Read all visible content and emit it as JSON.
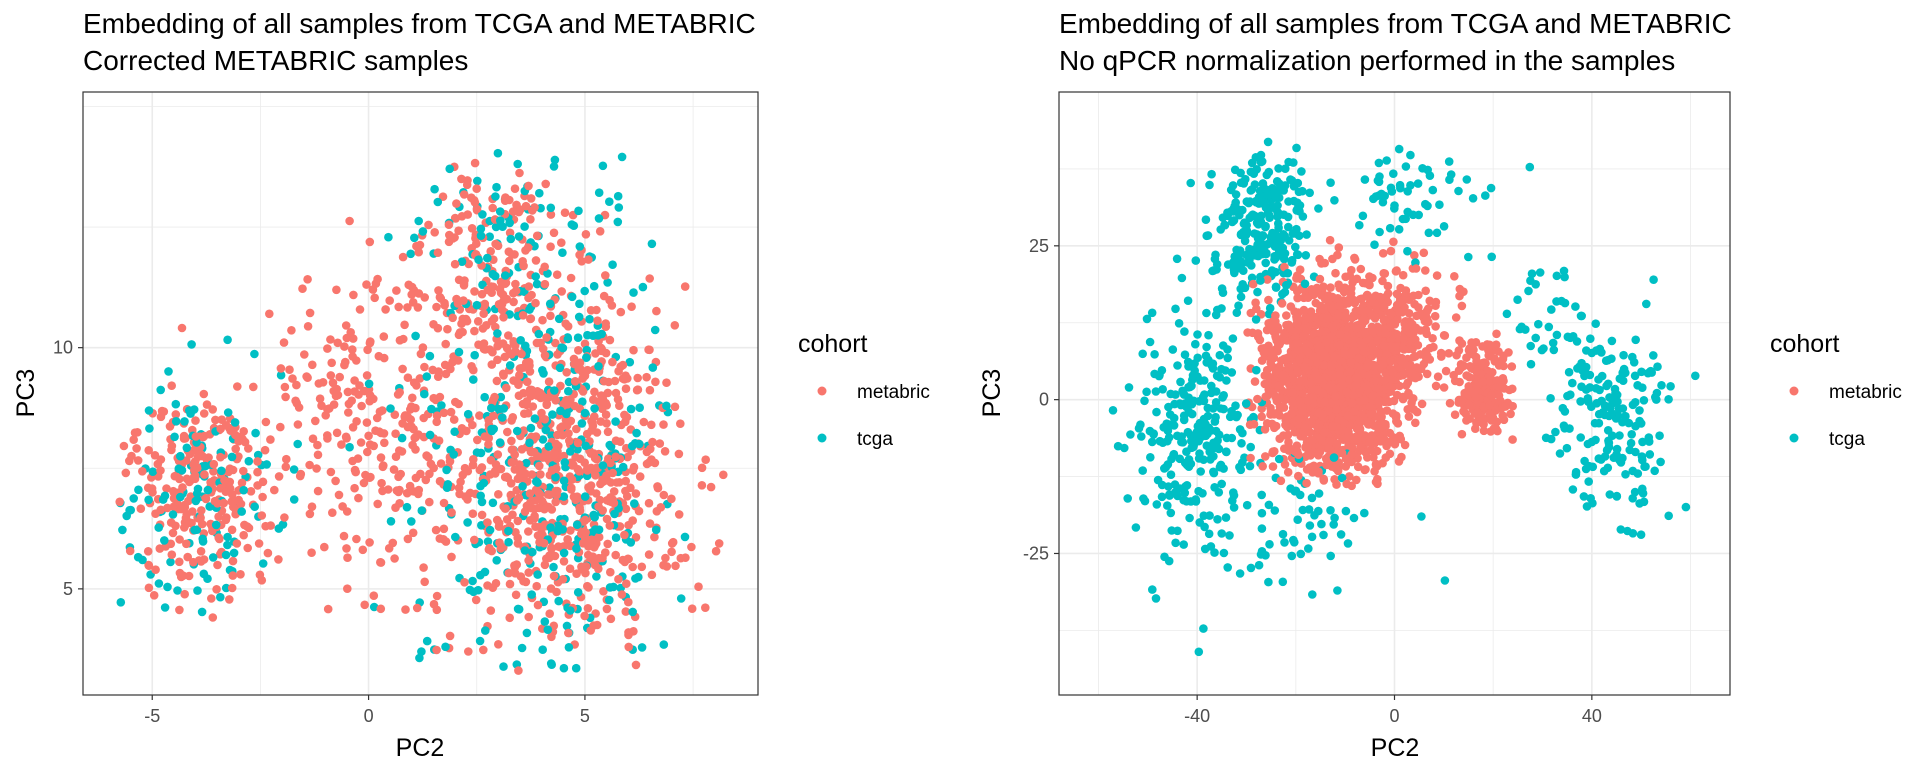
{
  "panels": [
    {
      "chart_data": {
        "type": "scatter",
        "title": "Embedding of all samples from TCGA and METABRIC",
        "subtitle": "Corrected METABRIC samples",
        "xlabel": "PC2",
        "ylabel": "PC3",
        "xlim": [
          -6.6,
          9.0
        ],
        "ylim": [
          2.8,
          15.3
        ],
        "x_major_ticks": [
          -5,
          0,
          5
        ],
        "y_major_ticks": [
          5,
          10
        ],
        "x_tick_labels": [
          "-5",
          "0",
          "5"
        ],
        "y_tick_labels": [
          "5",
          "10"
        ],
        "grid": true,
        "legend_title": "cohort",
        "legend_position": "right",
        "series": [
          {
            "name": "metabric",
            "color": "#F8766D",
            "clusters": [
              {
                "n": 700,
                "cx": 4.6,
                "cy": 7.5,
                "sx": 1.3,
                "sy": 1.8,
                "xmin": 0.5,
                "xmax": 8.2,
                "ymin": 3.3,
                "ymax": 11.5
              },
              {
                "n": 260,
                "cx": -3.8,
                "cy": 7.0,
                "sx": 0.8,
                "sy": 1.1,
                "xmin": -5.9,
                "xmax": -1.5,
                "ymin": 4.4,
                "ymax": 11.5
              },
              {
                "n": 260,
                "cx": 0.2,
                "cy": 8.3,
                "sx": 1.4,
                "sy": 1.6,
                "xmin": -2.5,
                "xmax": 3.0,
                "ymin": 4.4,
                "ymax": 11.5
              },
              {
                "n": 240,
                "cx": 3.0,
                "cy": 11.3,
                "sx": 1.3,
                "sy": 1.3,
                "xmin": -0.9,
                "xmax": 5.5,
                "ymin": 8.5,
                "ymax": 14.0
              }
            ]
          },
          {
            "name": "tcga",
            "color": "#00BFC4",
            "clusters": [
              {
                "n": 330,
                "cx": 4.2,
                "cy": 7.5,
                "sx": 1.6,
                "sy": 2.4,
                "xmin": -0.5,
                "xmax": 7.8,
                "ymin": 3.3,
                "ymax": 14.0
              },
              {
                "n": 120,
                "cx": -4.0,
                "cy": 7.0,
                "sx": 1.0,
                "sy": 1.3,
                "xmin": -5.8,
                "xmax": -1.5,
                "ymin": 4.3,
                "ymax": 11.8
              },
              {
                "n": 70,
                "cx": 3.5,
                "cy": 12.3,
                "sx": 1.2,
                "sy": 1.0,
                "xmin": 0.0,
                "xmax": 6.6,
                "ymin": 10.0,
                "ymax": 14.2
              }
            ]
          }
        ]
      }
    },
    {
      "chart_data": {
        "type": "scatter",
        "title": "Embedding of all samples from TCGA and METABRIC",
        "subtitle": "No qPCR normalization performed in the samples",
        "xlabel": "PC2",
        "ylabel": "PC3",
        "xlim": [
          -68,
          68
        ],
        "ylim": [
          -48,
          50
        ],
        "x_major_ticks": [
          -40,
          0,
          40
        ],
        "y_major_ticks": [
          -25,
          0,
          25
        ],
        "x_tick_labels": [
          "-40",
          "0",
          "40"
        ],
        "y_tick_labels": [
          "-25",
          "0",
          "25"
        ],
        "grid": true,
        "legend_title": "cohort",
        "legend_position": "right",
        "series": [
          {
            "name": "metabric",
            "color": "#F8766D",
            "clusters": [
              {
                "n": 1500,
                "cx": -13,
                "cy": 3,
                "sx": 7,
                "sy": 8,
                "xmin": -30,
                "xmax": 5,
                "ymin": -14,
                "ymax": 26
              },
              {
                "n": 280,
                "cx": 0,
                "cy": 10,
                "sx": 6,
                "sy": 6,
                "xmin": -10,
                "xmax": 14,
                "ymin": -4,
                "ymax": 26
              },
              {
                "n": 200,
                "cx": 18,
                "cy": 2,
                "sx": 3,
                "sy": 4,
                "xmin": 11,
                "xmax": 24,
                "ymin": -8,
                "ymax": 14
              }
            ]
          },
          {
            "name": "tcga",
            "color": "#00BFC4",
            "clusters": [
              {
                "n": 260,
                "cx": -27,
                "cy": 28,
                "sx": 5,
                "sy": 6,
                "xmin": -44,
                "xmax": -10,
                "ymin": 14,
                "ymax": 42
              },
              {
                "n": 280,
                "cx": -40,
                "cy": -5,
                "sx": 7,
                "sy": 11,
                "xmin": -58,
                "xmax": -24,
                "ymin": -44,
                "ymax": 24
              },
              {
                "n": 180,
                "cx": 44,
                "cy": -2,
                "sx": 6,
                "sy": 9,
                "xmin": 30,
                "xmax": 62,
                "ymin": -32,
                "ymax": 26
              },
              {
                "n": 60,
                "cx": 5,
                "cy": 32,
                "sx": 8,
                "sy": 5,
                "xmin": -10,
                "xmax": 34,
                "ymin": 22,
                "ymax": 44
              },
              {
                "n": 60,
                "cx": -20,
                "cy": -18,
                "sx": 8,
                "sy": 7,
                "xmin": -34,
                "xmax": 22,
                "ymin": -32,
                "ymax": -8
              },
              {
                "n": 30,
                "cx": 30,
                "cy": 15,
                "sx": 5,
                "sy": 6,
                "xmin": 22,
                "xmax": 40,
                "ymin": 2,
                "ymax": 26
              }
            ]
          }
        ]
      }
    }
  ]
}
